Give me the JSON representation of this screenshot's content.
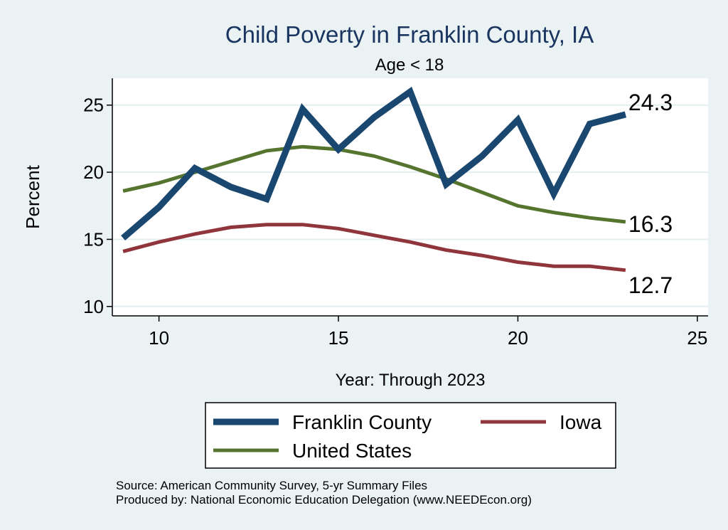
{
  "chart_data": {
    "type": "line",
    "title": "Child Poverty in Franklin County, IA",
    "subtitle": "Age < 18",
    "xlabel": "Year: Through 2023",
    "ylabel": "Percent",
    "xlim": [
      8.7,
      25.3
    ],
    "ylim": [
      9.3,
      27.0
    ],
    "xticks": [
      10,
      15,
      20,
      25
    ],
    "yticks": [
      10,
      15,
      20,
      25
    ],
    "grid": true,
    "legend_position": "bottom",
    "x": [
      9,
      10,
      11,
      12,
      13,
      14,
      15,
      16,
      17,
      18,
      19,
      20,
      21,
      22,
      23
    ],
    "series": [
      {
        "name": "Franklin County",
        "color": "#1a476f",
        "values": [
          15.1,
          17.4,
          20.3,
          18.9,
          18.0,
          24.7,
          21.7,
          24.1,
          26.0,
          19.1,
          21.2,
          23.9,
          18.4,
          23.6,
          24.3
        ],
        "end_label": "24.3"
      },
      {
        "name": "Iowa",
        "color": "#90353b",
        "values": [
          14.1,
          14.8,
          15.4,
          15.9,
          16.1,
          16.1,
          15.8,
          15.3,
          14.8,
          14.2,
          13.8,
          13.3,
          13.0,
          13.0,
          12.7
        ],
        "end_label": "12.7"
      },
      {
        "name": "United States",
        "color": "#55752f",
        "values": [
          18.6,
          19.2,
          20.0,
          20.8,
          21.6,
          21.9,
          21.7,
          21.2,
          20.4,
          19.5,
          18.5,
          17.5,
          17.0,
          16.6,
          16.3
        ],
        "end_label": "16.3"
      }
    ],
    "legend_items": [
      "Franklin County",
      "Iowa",
      "United States"
    ]
  },
  "footer": {
    "source": "Source: American Community Survey, 5-yr Summary Files",
    "produced_by": "Produced by: National Economic Education Delegation (www.NEEDEcon.org)"
  }
}
